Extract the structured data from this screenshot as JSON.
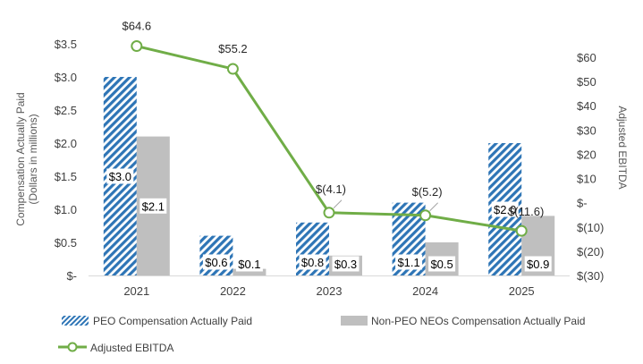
{
  "chart_data": {
    "type": "bar",
    "categories": [
      "2021",
      "2022",
      "2023",
      "2024",
      "2025"
    ],
    "series": [
      {
        "name": "PEO Compensation Actually Paid",
        "axis": "left",
        "values": [
          3.0,
          0.6,
          0.8,
          1.1,
          2.0
        ],
        "labels": [
          "$3.0",
          "$0.6",
          "$0.8",
          "$1.1",
          "$2.0"
        ],
        "color": "#2E75B6"
      },
      {
        "name": "Non-PEO NEOs Compensation Actually Paid",
        "axis": "left",
        "values": [
          2.1,
          0.1,
          0.3,
          0.5,
          0.9
        ],
        "labels": [
          "$2.1",
          "$0.1",
          "$0.3",
          "$0.5",
          "$0.9"
        ],
        "color": "#BFBFBF"
      },
      {
        "name": "Adjusted EBITDA",
        "type": "line",
        "axis": "right",
        "values": [
          64.6,
          55.2,
          -4.1,
          -5.2,
          -11.6
        ],
        "labels": [
          "$64.6",
          "$55.2",
          "$(4.1)",
          "$(5.2)",
          "$(11.6)"
        ],
        "color": "#70AD47"
      }
    ],
    "y_left": {
      "label_line1": "Compensation Actually Paid",
      "label_line2": "(Dollars in millions)",
      "range": [
        0,
        3.5
      ],
      "ticks": [
        0,
        0.5,
        1.0,
        1.5,
        2.0,
        2.5,
        3.0,
        3.5
      ],
      "tick_labels": [
        "$-",
        "$0.5",
        "$1.0",
        "$1.5",
        "$2.0",
        "$2.5",
        "$3.0",
        "$3.5"
      ]
    },
    "y_right": {
      "label": "Adjusted EBITDA",
      "range": [
        -30,
        60
      ],
      "ticks": [
        -30,
        -20,
        -10,
        0,
        10,
        20,
        30,
        40,
        50,
        60
      ],
      "tick_labels": [
        "$(30)",
        "$(20)",
        "$(10)",
        "$-",
        "$10",
        "$20",
        "$30",
        "$40",
        "$50",
        "$60"
      ]
    },
    "legend_position": "bottom",
    "grid": false
  }
}
